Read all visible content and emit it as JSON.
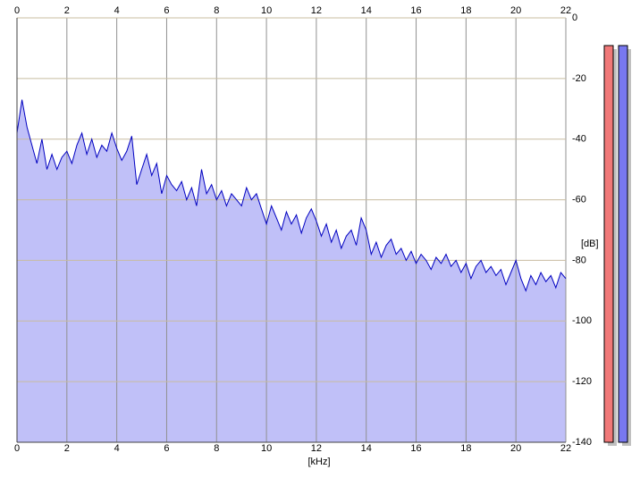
{
  "chart_data": {
    "type": "area",
    "x_label": "[kHz]",
    "y_label": "[dB]",
    "x": [
      0,
      0.2,
      0.4,
      0.6,
      0.8,
      1,
      1.2,
      1.4,
      1.6,
      1.8,
      2,
      2.2,
      2.4,
      2.6,
      2.8,
      3,
      3.2,
      3.4,
      3.6,
      3.8,
      4,
      4.2,
      4.4,
      4.6,
      4.8,
      5,
      5.2,
      5.4,
      5.6,
      5.8,
      6,
      6.2,
      6.4,
      6.6,
      6.8,
      7,
      7.2,
      7.4,
      7.6,
      7.8,
      8,
      8.2,
      8.4,
      8.6,
      8.8,
      9,
      9.2,
      9.4,
      9.6,
      9.8,
      10,
      10.2,
      10.4,
      10.6,
      10.8,
      11,
      11.2,
      11.4,
      11.6,
      11.8,
      12,
      12.2,
      12.4,
      12.6,
      12.8,
      13,
      13.2,
      13.4,
      13.6,
      13.8,
      14,
      14.2,
      14.4,
      14.6,
      14.8,
      15,
      15.2,
      15.4,
      15.6,
      15.8,
      16,
      16.2,
      16.4,
      16.6,
      16.8,
      17,
      17.2,
      17.4,
      17.6,
      17.8,
      18,
      18.2,
      18.4,
      18.6,
      18.8,
      19,
      19.2,
      19.4,
      19.6,
      19.8,
      20,
      20.2,
      20.4,
      20.6,
      20.8,
      21,
      21.2,
      21.4,
      21.6,
      21.8,
      22
    ],
    "values": [
      -38,
      -27,
      -36,
      -42,
      -48,
      -40,
      -50,
      -45,
      -50,
      -46,
      -44,
      -48,
      -42,
      -38,
      -45,
      -40,
      -46,
      -42,
      -44,
      -38,
      -43,
      -47,
      -44,
      -39,
      -55,
      -50,
      -45,
      -52,
      -48,
      -58,
      -52,
      -55,
      -57,
      -54,
      -60,
      -56,
      -62,
      -50,
      -58,
      -55,
      -60,
      -57,
      -62,
      -58,
      -60,
      -62,
      -56,
      -60,
      -58,
      -63,
      -68,
      -62,
      -66,
      -70,
      -64,
      -68,
      -65,
      -71,
      -66,
      -63,
      -67,
      -72,
      -68,
      -74,
      -70,
      -76,
      -72,
      -70,
      -75,
      -66,
      -70,
      -78,
      -74,
      -79,
      -75,
      -73,
      -78,
      -76,
      -80,
      -77,
      -81,
      -78,
      -80,
      -83,
      -79,
      -81,
      -78,
      -82,
      -80,
      -84,
      -81,
      -86,
      -82,
      -80,
      -84,
      -82,
      -85,
      -83,
      -88,
      -84,
      -80,
      -86,
      -90,
      -85,
      -88,
      -84,
      -87,
      -85,
      -89,
      -84,
      -86
    ],
    "color": "#0000c0",
    "fill": "#c0c0f8",
    "xlim": [
      0,
      22
    ],
    "xticks": [
      0,
      2,
      4,
      6,
      8,
      10,
      12,
      14,
      16,
      18,
      20,
      22
    ],
    "ylim": [
      -140,
      0
    ],
    "yticks": [
      0,
      -20,
      -40,
      -60,
      -80,
      -100,
      -120,
      -140
    ],
    "grid": true
  }
}
